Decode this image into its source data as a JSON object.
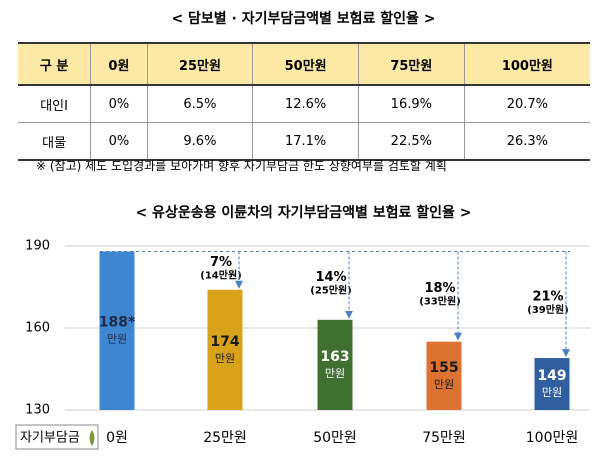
{
  "title": "< 담보별 · 자기부담금액별 보험료 할인율 >",
  "table": {
    "headers": [
      "구 분",
      "0원",
      "25만원",
      "50만원",
      "75만원",
      "100만원"
    ],
    "rows": [
      [
        "대인Ⅰ",
        "0%",
        "6.5%",
        "12.6%",
        "16.9%",
        "20.7%"
      ],
      [
        "대물",
        "0%",
        "9.6%",
        "17.1%",
        "22.5%",
        "26.3%"
      ]
    ]
  },
  "note": "※ (참고) 제도 도입경과를 보아가며 향후 자기부담금 한도 상향여부를 검토할 계획",
  "chart_data": {
    "type": "bar",
    "title": "< 유상운송용 이륜차의 자기부담금액별 보험료 할인율 >",
    "x_label": "자기부담금",
    "categories": [
      "0원",
      "25만원",
      "50만원",
      "75만원",
      "100만원"
    ],
    "values": [
      188,
      174,
      163,
      155,
      149
    ],
    "value_labels": [
      "188*",
      "174",
      "163",
      "155",
      "149"
    ],
    "unit": "만원",
    "colors": [
      "#3f86d0",
      "#d9a21a",
      "#3f7030",
      "#de7232",
      "#2f5f9e"
    ],
    "discounts": [
      null,
      {
        "rate": "7%",
        "amount": "(14만원)"
      },
      {
        "rate": "14%",
        "amount": "(25만원)"
      },
      {
        "rate": "18%",
        "amount": "(33만원)"
      },
      {
        "rate": "21%",
        "amount": "(39만원)"
      }
    ],
    "ylim": [
      130,
      190
    ],
    "yticks": [
      130,
      160,
      190
    ],
    "grid": true
  }
}
